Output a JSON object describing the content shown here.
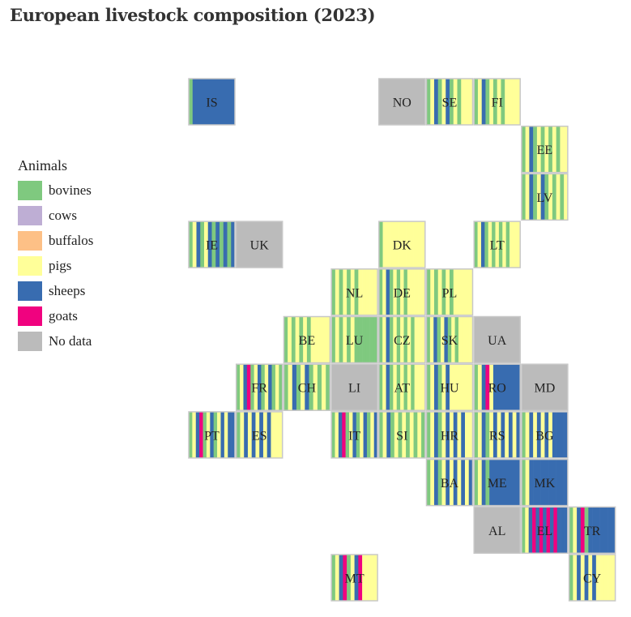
{
  "title": "European livestock composition (2023)",
  "legend": {
    "title": "Animals",
    "items": [
      {
        "label": "bovines",
        "color": "#7fc97f"
      },
      {
        "label": "cows",
        "color": "#beaed4"
      },
      {
        "label": "buffalos",
        "color": "#fdc086"
      },
      {
        "label": "pigs",
        "color": "#ffff99"
      },
      {
        "label": "sheeps",
        "color": "#386cb0"
      },
      {
        "label": "goats",
        "color": "#f0027f"
      },
      {
        "label": "No data",
        "color": "#bbbbbb"
      }
    ]
  },
  "chart_data": {
    "type": "tile-grid-map",
    "categories": [
      "bovines",
      "cows",
      "buffalos",
      "pigs",
      "sheeps",
      "goats"
    ],
    "no_data_color": "#bbbbbb",
    "countries": [
      {
        "code": "IS",
        "row": 0,
        "col": 0,
        "shares": {
          "bovines": 0.1,
          "sheeps": 0.9
        }
      },
      {
        "code": "NO",
        "row": 0,
        "col": 4,
        "shares": null
      },
      {
        "code": "SE",
        "row": 0,
        "col": 5,
        "shares": {
          "bovines": 0.35,
          "pigs": 0.5,
          "sheeps": 0.15
        }
      },
      {
        "code": "FI",
        "row": 0,
        "col": 6,
        "shares": {
          "bovines": 0.3,
          "pigs": 0.6,
          "sheeps": 0.1
        }
      },
      {
        "code": "EE",
        "row": 1,
        "col": 7,
        "shares": {
          "bovines": 0.4,
          "pigs": 0.5,
          "sheeps": 0.1
        }
      },
      {
        "code": "LV",
        "row": 2,
        "col": 7,
        "shares": {
          "bovines": 0.45,
          "pigs": 0.4,
          "sheeps": 0.15
        }
      },
      {
        "code": "IE",
        "row": 3,
        "col": 0,
        "shares": {
          "bovines": 0.45,
          "pigs": 0.15,
          "sheeps": 0.4
        }
      },
      {
        "code": "UK",
        "row": 3,
        "col": 1,
        "shares": null
      },
      {
        "code": "DK",
        "row": 3,
        "col": 4,
        "shares": {
          "bovines": 0.1,
          "pigs": 0.9
        }
      },
      {
        "code": "LT",
        "row": 3,
        "col": 6,
        "shares": {
          "bovines": 0.4,
          "pigs": 0.55,
          "sheeps": 0.05
        }
      },
      {
        "code": "NL",
        "row": 4,
        "col": 3,
        "shares": {
          "bovines": 0.3,
          "pigs": 0.7
        }
      },
      {
        "code": "DE",
        "row": 4,
        "col": 4,
        "shares": {
          "bovines": 0.3,
          "pigs": 0.65,
          "sheeps": 0.05
        }
      },
      {
        "code": "PL",
        "row": 4,
        "col": 5,
        "shares": {
          "bovines": 0.3,
          "pigs": 0.7
        }
      },
      {
        "code": "BE",
        "row": 5,
        "col": 2,
        "shares": {
          "bovines": 0.3,
          "pigs": 0.7
        }
      },
      {
        "code": "LU",
        "row": 5,
        "col": 3,
        "shares": {
          "bovines": 0.75,
          "pigs": 0.25
        }
      },
      {
        "code": "CZ",
        "row": 5,
        "col": 4,
        "shares": {
          "bovines": 0.4,
          "pigs": 0.55,
          "sheeps": 0.05
        }
      },
      {
        "code": "SK",
        "row": 5,
        "col": 5,
        "shares": {
          "bovines": 0.3,
          "pigs": 0.55,
          "sheeps": 0.15
        }
      },
      {
        "code": "UA",
        "row": 5,
        "col": 6,
        "shares": null
      },
      {
        "code": "FR",
        "row": 6,
        "col": 1,
        "shares": {
          "bovines": 0.4,
          "pigs": 0.3,
          "sheeps": 0.25,
          "goats": 0.05
        }
      },
      {
        "code": "CH",
        "row": 6,
        "col": 2,
        "shares": {
          "bovines": 0.45,
          "pigs": 0.35,
          "sheeps": 0.2
        }
      },
      {
        "code": "LI",
        "row": 6,
        "col": 3,
        "shares": null
      },
      {
        "code": "AT",
        "row": 6,
        "col": 4,
        "shares": {
          "bovines": 0.4,
          "pigs": 0.55,
          "sheeps": 0.05
        }
      },
      {
        "code": "HU",
        "row": 6,
        "col": 5,
        "shares": {
          "bovines": 0.15,
          "pigs": 0.65,
          "sheeps": 0.2
        }
      },
      {
        "code": "RO",
        "row": 6,
        "col": 6,
        "shares": {
          "bovines": 0.1,
          "pigs": 0.2,
          "sheeps": 0.65,
          "goats": 0.05
        }
      },
      {
        "code": "MD",
        "row": 6,
        "col": 7,
        "shares": null
      },
      {
        "code": "PT",
        "row": 7,
        "col": 0,
        "shares": {
          "bovines": 0.25,
          "pigs": 0.3,
          "sheeps": 0.4,
          "goats": 0.05
        }
      },
      {
        "code": "ES",
        "row": 7,
        "col": 1,
        "shares": {
          "bovines": 0.1,
          "pigs": 0.6,
          "sheeps": 0.3
        }
      },
      {
        "code": "IT",
        "row": 7,
        "col": 3,
        "shares": {
          "bovines": 0.3,
          "pigs": 0.35,
          "sheeps": 0.3,
          "goats": 0.05
        }
      },
      {
        "code": "SI",
        "row": 7,
        "col": 4,
        "shares": {
          "bovines": 0.5,
          "pigs": 0.4,
          "sheeps": 0.1
        }
      },
      {
        "code": "HR",
        "row": 7,
        "col": 5,
        "shares": {
          "bovines": 0.2,
          "pigs": 0.5,
          "sheeps": 0.3
        }
      },
      {
        "code": "RS",
        "row": 7,
        "col": 6,
        "shares": {
          "bovines": 0.15,
          "pigs": 0.45,
          "sheeps": 0.4
        }
      },
      {
        "code": "BG",
        "row": 7,
        "col": 7,
        "shares": {
          "bovines": 0.1,
          "pigs": 0.3,
          "sheeps": 0.6
        }
      },
      {
        "code": "BA",
        "row": 8,
        "col": 5,
        "shares": {
          "bovines": 0.2,
          "pigs": 0.4,
          "sheeps": 0.4
        }
      },
      {
        "code": "ME",
        "row": 8,
        "col": 6,
        "shares": {
          "bovines": 0.15,
          "pigs": 0.1,
          "sheeps": 0.75
        }
      },
      {
        "code": "MK",
        "row": 8,
        "col": 7,
        "shares": {
          "bovines": 0.1,
          "pigs": 0.1,
          "sheeps": 0.8
        }
      },
      {
        "code": "AL",
        "row": 9,
        "col": 6,
        "shares": null
      },
      {
        "code": "EL",
        "row": 9,
        "col": 7,
        "shares": {
          "bovines": 0.05,
          "pigs": 0.05,
          "sheeps": 0.6,
          "goats": 0.3
        }
      },
      {
        "code": "TR",
        "row": 9,
        "col": 8,
        "shares": {
          "bovines": 0.2,
          "pigs": 0.05,
          "sheeps": 0.65,
          "goats": 0.1
        }
      },
      {
        "code": "MT",
        "row": 10,
        "col": 3,
        "shares": {
          "bovines": 0.2,
          "pigs": 0.5,
          "sheeps": 0.15,
          "goats": 0.15
        }
      },
      {
        "code": "CY",
        "row": 10,
        "col": 8,
        "shares": {
          "bovines": 0.1,
          "pigs": 0.65,
          "sheeps": 0.25
        }
      }
    ]
  }
}
